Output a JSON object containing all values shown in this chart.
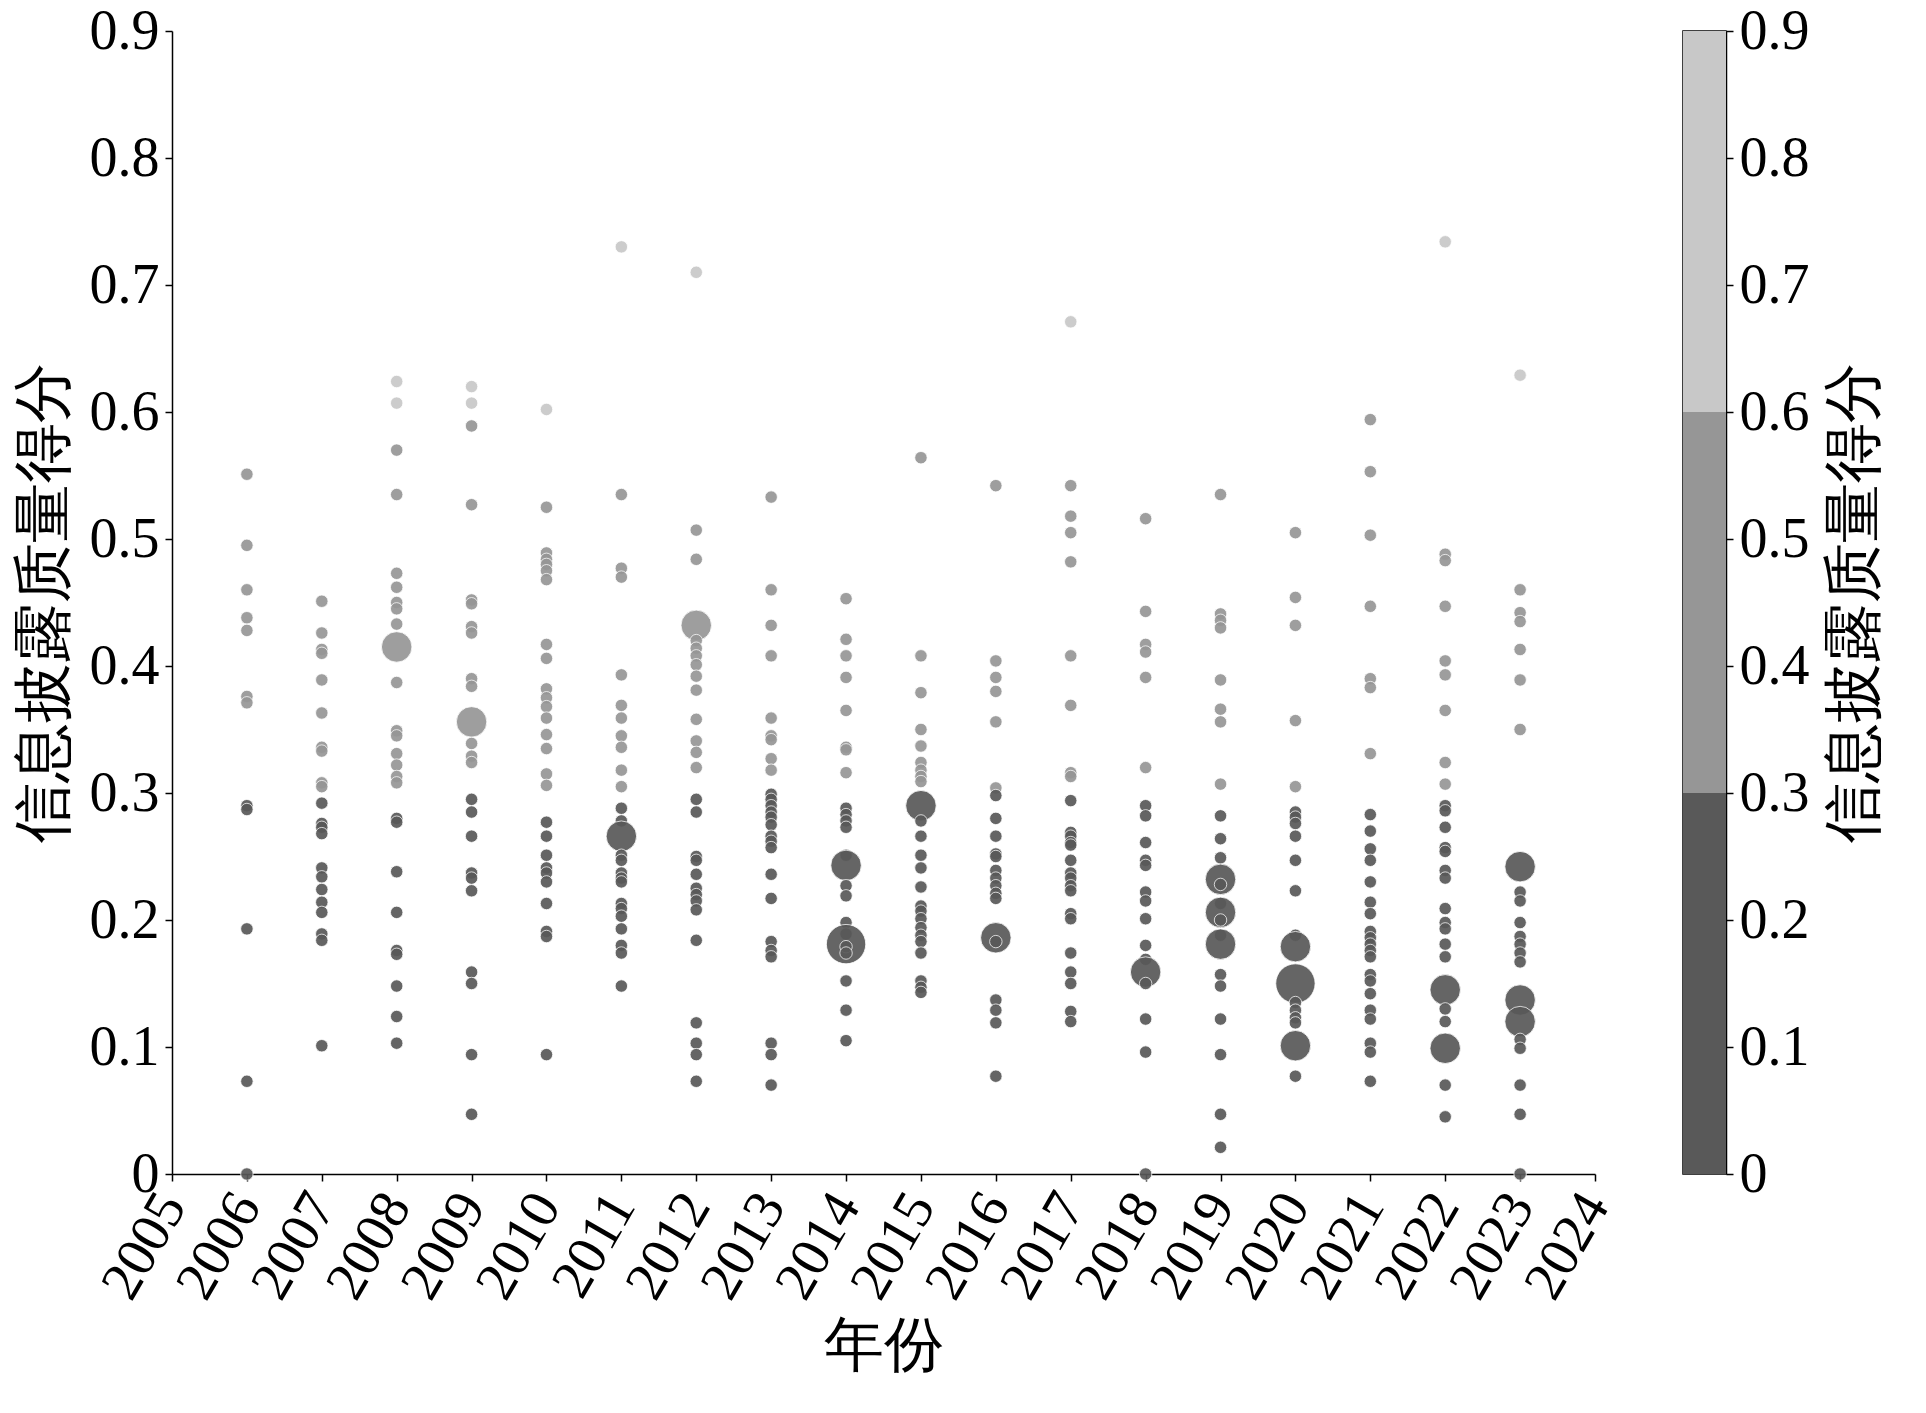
{
  "chart_data": {
    "type": "bubble",
    "xlabel": "年份",
    "ylabel": "信息披露质量得分",
    "clabel": "信息披露质量得分",
    "marker": "circle",
    "xlim": [
      2005,
      2024
    ],
    "xticks": [
      2005,
      2006,
      2007,
      2008,
      2009,
      2010,
      2011,
      2012,
      2013,
      2014,
      2015,
      2016,
      2017,
      2018,
      2019,
      2020,
      2021,
      2022,
      2023,
      2024
    ],
    "ylim": [
      0,
      0.9
    ],
    "yticks": [
      0,
      0.1,
      0.2,
      0.3,
      0.4,
      0.5,
      0.6,
      0.7,
      0.8,
      0.9
    ],
    "clim": [
      0,
      0.9
    ],
    "cticks": [
      0,
      0.1,
      0.2,
      0.3,
      0.4,
      0.5,
      0.6,
      0.7,
      0.8,
      0.9
    ],
    "x": [
      2006,
      2006,
      2006,
      2006,
      2006,
      2006,
      2006,
      2006,
      2006,
      2006,
      2006,
      2006,
      2007,
      2007,
      2007,
      2007,
      2007,
      2007,
      2007,
      2007,
      2007,
      2007,
      2007,
      2007,
      2007,
      2007,
      2007,
      2007,
      2007,
      2007,
      2007,
      2007,
      2007,
      2007,
      2008,
      2008,
      2008,
      2008,
      2008,
      2008,
      2008,
      2008,
      2008,
      2008,
      2008,
      2008,
      2008,
      2008,
      2008,
      2008,
      2008,
      2008,
      2008,
      2008,
      2008,
      2008,
      2008,
      2008,
      2008,
      2008,
      2009,
      2009,
      2009,
      2009,
      2009,
      2009,
      2009,
      2009,
      2009,
      2009,
      2009,
      2009,
      2009,
      2009,
      2009,
      2009,
      2009,
      2009,
      2009,
      2009,
      2009,
      2009,
      2009,
      2009,
      2010,
      2010,
      2010,
      2010,
      2010,
      2010,
      2010,
      2010,
      2010,
      2010,
      2010,
      2010,
      2010,
      2010,
      2010,
      2010,
      2010,
      2010,
      2010,
      2010,
      2010,
      2010,
      2010,
      2010,
      2010,
      2010,
      2010,
      2011,
      2011,
      2011,
      2011,
      2011,
      2011,
      2011,
      2011,
      2011,
      2011,
      2011,
      2011,
      2011,
      2011,
      2011,
      2011,
      2011,
      2011,
      2011,
      2011,
      2011,
      2011,
      2011,
      2011,
      2011,
      2011,
      2012,
      2012,
      2012,
      2012,
      2012,
      2012,
      2012,
      2012,
      2012,
      2012,
      2012,
      2012,
      2012,
      2012,
      2012,
      2012,
      2012,
      2012,
      2012,
      2012,
      2012,
      2012,
      2012,
      2012,
      2012,
      2012,
      2012,
      2012,
      2013,
      2013,
      2013,
      2013,
      2013,
      2013,
      2013,
      2013,
      2013,
      2013,
      2013,
      2013,
      2013,
      2013,
      2013,
      2013,
      2013,
      2013,
      2013,
      2013,
      2013,
      2013,
      2013,
      2013,
      2013,
      2013,
      2014,
      2014,
      2014,
      2014,
      2014,
      2014,
      2014,
      2014,
      2014,
      2014,
      2014,
      2014,
      2014,
      2014,
      2014,
      2014,
      2014,
      2014,
      2014,
      2014,
      2014,
      2014,
      2014,
      2014,
      2015,
      2015,
      2015,
      2015,
      2015,
      2015,
      2015,
      2015,
      2015,
      2015,
      2015,
      2015,
      2015,
      2015,
      2015,
      2015,
      2015,
      2015,
      2015,
      2015,
      2015,
      2015,
      2015,
      2015,
      2015,
      2016,
      2016,
      2016,
      2016,
      2016,
      2016,
      2016,
      2016,
      2016,
      2016,
      2016,
      2016,
      2016,
      2016,
      2016,
      2016,
      2016,
      2016,
      2016,
      2016,
      2016,
      2016,
      2017,
      2017,
      2017,
      2017,
      2017,
      2017,
      2017,
      2017,
      2017,
      2017,
      2017,
      2017,
      2017,
      2017,
      2017,
      2017,
      2017,
      2017,
      2017,
      2017,
      2017,
      2017,
      2017,
      2017,
      2017,
      2017,
      2018,
      2018,
      2018,
      2018,
      2018,
      2018,
      2018,
      2018,
      2018,
      2018,
      2018,
      2018,
      2018,
      2018,
      2018,
      2018,
      2018,
      2018,
      2018,
      2018,
      2018,
      2019,
      2019,
      2019,
      2019,
      2019,
      2019,
      2019,
      2019,
      2019,
      2019,
      2019,
      2019,
      2019,
      2019,
      2019,
      2019,
      2019,
      2019,
      2019,
      2019,
      2019,
      2019,
      2019,
      2019,
      2020,
      2020,
      2020,
      2020,
      2020,
      2020,
      2020,
      2020,
      2020,
      2020,
      2020,
      2020,
      2020,
      2020,
      2020,
      2020,
      2020,
      2020,
      2020,
      2020,
      2021,
      2021,
      2021,
      2021,
      2021,
      2021,
      2021,
      2021,
      2021,
      2021,
      2021,
      2021,
      2021,
      2021,
      2021,
      2021,
      2021,
      2021,
      2021,
      2021,
      2021,
      2021,
      2021,
      2021,
      2021,
      2021,
      2021,
      2022,
      2022,
      2022,
      2022,
      2022,
      2022,
      2022,
      2022,
      2022,
      2022,
      2022,
      2022,
      2022,
      2022,
      2022,
      2022,
      2022,
      2022,
      2022,
      2022,
      2022,
      2022,
      2022,
      2022,
      2022,
      2022,
      2022,
      2023,
      2023,
      2023,
      2023,
      2023,
      2023,
      2023,
      2023,
      2023,
      2023,
      2023,
      2023,
      2023,
      2023,
      2023,
      2023,
      2023,
      2023,
      2023,
      2023,
      2023,
      2023
    ],
    "values": [
      0.551,
      0.495,
      0.46,
      0.438,
      0.428,
      0.376,
      0.371,
      0.29,
      0.287,
      0.193,
      0.073,
      0,
      0.451,
      0.426,
      0.413,
      0.41,
      0.389,
      0.363,
      0.336,
      0.333,
      0.308,
      0.305,
      0.292,
      0.276,
      0.273,
      0.268,
      0.241,
      0.234,
      0.224,
      0.214,
      0.206,
      0.189,
      0.184,
      0.101,
      0.624,
      0.607,
      0.57,
      0.535,
      0.473,
      0.462,
      0.45,
      0.445,
      0.433,
      0.415,
      0.387,
      0.349,
      0.345,
      0.331,
      0.322,
      0.313,
      0.308,
      0.28,
      0.277,
      0.238,
      0.206,
      0.176,
      0.173,
      0.148,
      0.124,
      0.103,
      0.62,
      0.607,
      0.589,
      0.527,
      0.452,
      0.449,
      0.431,
      0.426,
      0.39,
      0.384,
      0.356,
      0.339,
      0.329,
      0.324,
      0.295,
      0.285,
      0.266,
      0.237,
      0.233,
      0.223,
      0.159,
      0.15,
      0.094,
      0.047,
      0.602,
      0.525,
      0.489,
      0.484,
      0.48,
      0.475,
      0.468,
      0.417,
      0.406,
      0.382,
      0.375,
      0.368,
      0.359,
      0.346,
      0.335,
      0.315,
      0.306,
      0.277,
      0.266,
      0.251,
      0.241,
      0.237,
      0.23,
      0.213,
      0.191,
      0.187,
      0.094,
      0.73,
      0.535,
      0.477,
      0.47,
      0.393,
      0.369,
      0.359,
      0.345,
      0.336,
      0.318,
      0.305,
      0.288,
      0.278,
      0.266,
      0.251,
      0.247,
      0.237,
      0.233,
      0.23,
      0.213,
      0.209,
      0.203,
      0.193,
      0.18,
      0.174,
      0.148,
      0.71,
      0.507,
      0.484,
      0.432,
      0.42,
      0.414,
      0.408,
      0.401,
      0.392,
      0.381,
      0.358,
      0.341,
      0.332,
      0.32,
      0.295,
      0.285,
      0.25,
      0.247,
      0.236,
      0.225,
      0.22,
      0.215,
      0.208,
      0.184,
      0.119,
      0.103,
      0.094,
      0.073,
      0.533,
      0.46,
      0.432,
      0.408,
      0.359,
      0.345,
      0.342,
      0.327,
      0.318,
      0.299,
      0.295,
      0.29,
      0.285,
      0.281,
      0.275,
      0.266,
      0.262,
      0.257,
      0.236,
      0.217,
      0.183,
      0.176,
      0.171,
      0.103,
      0.094,
      0.07,
      0.453,
      0.421,
      0.408,
      0.391,
      0.365,
      0.336,
      0.334,
      0.316,
      0.288,
      0.283,
      0.278,
      0.273,
      0.251,
      0.243,
      0.227,
      0.219,
      0.198,
      0.189,
      0.181,
      0.179,
      0.174,
      0.152,
      0.129,
      0.105,
      0.564,
      0.408,
      0.379,
      0.35,
      0.337,
      0.324,
      0.318,
      0.313,
      0.309,
      0.29,
      0.278,
      0.266,
      0.251,
      0.241,
      0.226,
      0.211,
      0.207,
      0.201,
      0.194,
      0.188,
      0.183,
      0.174,
      0.152,
      0.147,
      0.143,
      0.542,
      0.404,
      0.391,
      0.38,
      0.356,
      0.304,
      0.298,
      0.28,
      0.266,
      0.252,
      0.25,
      0.239,
      0.233,
      0.227,
      0.221,
      0.217,
      0.186,
      0.183,
      0.137,
      0.129,
      0.119,
      0.077,
      0.671,
      0.542,
      0.518,
      0.505,
      0.482,
      0.408,
      0.369,
      0.316,
      0.313,
      0.294,
      0.269,
      0.266,
      0.261,
      0.259,
      0.247,
      0.237,
      0.233,
      0.227,
      0.223,
      0.205,
      0.201,
      0.174,
      0.159,
      0.15,
      0.128,
      0.12,
      0.516,
      0.443,
      0.417,
      0.411,
      0.391,
      0.32,
      0.29,
      0.282,
      0.261,
      0.247,
      0.243,
      0.222,
      0.215,
      0.201,
      0.18,
      0.169,
      0.159,
      0.15,
      0.122,
      0.096,
      0,
      0.535,
      0.441,
      0.436,
      0.43,
      0.389,
      0.366,
      0.356,
      0.307,
      0.282,
      0.264,
      0.249,
      0.232,
      0.228,
      0.213,
      0.206,
      0.2,
      0.188,
      0.181,
      0.157,
      0.148,
      0.122,
      0.094,
      0.047,
      0.021,
      0.505,
      0.454,
      0.432,
      0.357,
      0.305,
      0.285,
      0.281,
      0.276,
      0.266,
      0.247,
      0.223,
      0.188,
      0.179,
      0.15,
      0.135,
      0.129,
      0.123,
      0.119,
      0.101,
      0.077,
      0.594,
      0.553,
      0.503,
      0.447,
      0.39,
      0.383,
      0.331,
      0.283,
      0.27,
      0.256,
      0.247,
      0.23,
      0.214,
      0.205,
      0.191,
      0.186,
      0.181,
      0.176,
      0.171,
      0.157,
      0.152,
      0.142,
      0.129,
      0.122,
      0.103,
      0.096,
      0.073,
      0.734,
      0.488,
      0.483,
      0.447,
      0.404,
      0.393,
      0.365,
      0.324,
      0.307,
      0.29,
      0.286,
      0.273,
      0.257,
      0.254,
      0.239,
      0.233,
      0.209,
      0.198,
      0.193,
      0.181,
      0.171,
      0.145,
      0.13,
      0.12,
      0.099,
      0.07,
      0.045,
      0.629,
      0.46,
      0.442,
      0.435,
      0.413,
      0.389,
      0.35,
      0.242,
      0.222,
      0.215,
      0.198,
      0.187,
      0.181,
      0.174,
      0.167,
      0.137,
      0.12,
      0.106,
      0.099,
      0.07,
      0.047,
      0
    ],
    "sizes": [
      0.1,
      0.1,
      0.1,
      0.1,
      0.1,
      0.1,
      0.1,
      0.1,
      0.1,
      0.1,
      0.1,
      0.1,
      0.1,
      0.1,
      0.1,
      0.1,
      0.1,
      0.1,
      0.1,
      0.1,
      0.1,
      0.1,
      0.1,
      0.1,
      0.1,
      0.1,
      0.1,
      0.1,
      0.1,
      0.1,
      0.1,
      0.1,
      0.1,
      0.1,
      0.1,
      0.1,
      0.1,
      0.1,
      0.1,
      0.1,
      0.1,
      0.1,
      0.1,
      0.6,
      0.1,
      0.1,
      0.1,
      0.1,
      0.1,
      0.1,
      0.1,
      0.1,
      0.1,
      0.1,
      0.1,
      0.1,
      0.1,
      0.1,
      0.1,
      0.1,
      0.1,
      0.1,
      0.1,
      0.1,
      0.1,
      0.1,
      0.1,
      0.1,
      0.1,
      0.1,
      0.6,
      0.1,
      0.1,
      0.1,
      0.1,
      0.1,
      0.1,
      0.1,
      0.1,
      0.1,
      0.1,
      0.1,
      0.1,
      0.1,
      0.1,
      0.1,
      0.1,
      0.1,
      0.1,
      0.1,
      0.1,
      0.1,
      0.1,
      0.1,
      0.1,
      0.1,
      0.1,
      0.1,
      0.1,
      0.1,
      0.1,
      0.1,
      0.1,
      0.1,
      0.1,
      0.1,
      0.1,
      0.1,
      0.1,
      0.1,
      0.1,
      0.1,
      0.1,
      0.1,
      0.1,
      0.1,
      0.1,
      0.1,
      0.1,
      0.1,
      0.1,
      0.1,
      0.1,
      0.1,
      0.6,
      0.1,
      0.1,
      0.1,
      0.1,
      0.1,
      0.1,
      0.1,
      0.1,
      0.1,
      0.1,
      0.1,
      0.1,
      0.1,
      0.1,
      0.1,
      0.6,
      0.1,
      0.1,
      0.1,
      0.1,
      0.1,
      0.1,
      0.1,
      0.1,
      0.1,
      0.1,
      0.1,
      0.1,
      0.1,
      0.1,
      0.1,
      0.1,
      0.1,
      0.1,
      0.1,
      0.1,
      0.1,
      0.1,
      0.1,
      0.1,
      0.1,
      0.1,
      0.1,
      0.1,
      0.1,
      0.1,
      0.1,
      0.1,
      0.1,
      0.1,
      0.1,
      0.1,
      0.1,
      0.1,
      0.1,
      0.1,
      0.1,
      0.1,
      0.1,
      0.1,
      0.1,
      0.1,
      0.1,
      0.1,
      0.1,
      0.1,
      0.1,
      0.1,
      0.1,
      0.1,
      0.1,
      0.1,
      0.1,
      0.1,
      0.1,
      0.1,
      0.1,
      0.1,
      0.1,
      0.6,
      0.1,
      0.1,
      0.1,
      0.1,
      1,
      0.1,
      0.1,
      0.1,
      0.1,
      0.1,
      0.1,
      0.1,
      0.1,
      0.1,
      0.1,
      0.1,
      0.1,
      0.1,
      0.1,
      0.6,
      0.1,
      0.1,
      0.1,
      0.1,
      0.1,
      0.1,
      0.1,
      0.1,
      0.1,
      0.1,
      0.1,
      0.1,
      0.1,
      0.1,
      0.1,
      0.1,
      0.1,
      0.1,
      0.1,
      0.1,
      0.1,
      0.1,
      0.1,
      0.1,
      0.1,
      0.1,
      0.1,
      0.1,
      0.1,
      0.1,
      0.1,
      0.6,
      0.1,
      0.1,
      0.1,
      0.1,
      0.1,
      0.1,
      0.1,
      0.1,
      0.1,
      0.1,
      0.1,
      0.1,
      0.1,
      0.1,
      0.1,
      0.1,
      0.1,
      0.1,
      0.1,
      0.1,
      0.1,
      0.1,
      0.1,
      0.1,
      0.1,
      0.1,
      0.1,
      0.1,
      0.1,
      0.1,
      0.1,
      0.1,
      0.1,
      0.1,
      0.1,
      0.1,
      0.1,
      0.1,
      0.1,
      0.1,
      0.1,
      0.1,
      0.1,
      0.1,
      0.1,
      0.1,
      0.1,
      0.6,
      0.1,
      0.1,
      0.1,
      0.1,
      0.1,
      0.1,
      0.1,
      0.1,
      0.1,
      0.1,
      0.1,
      0.1,
      0.1,
      0.1,
      0.1,
      0.6,
      0.1,
      0.1,
      0.6,
      0.1,
      0.1,
      0.6,
      0.1,
      0.1,
      0.1,
      0.1,
      0.1,
      0.1,
      0.1,
      0.1,
      0.1,
      0.1,
      0.1,
      0.1,
      0.1,
      0.1,
      0.1,
      0.1,
      0.1,
      0.1,
      0.6,
      1,
      0.1,
      0.1,
      0.1,
      0.1,
      0.6,
      0.1,
      0.1,
      0.1,
      0.1,
      0.1,
      0.1,
      0.1,
      0.1,
      0.1,
      0.1,
      0.1,
      0.1,
      0.1,
      0.1,
      0.1,
      0.1,
      0.1,
      0.1,
      0.1,
      0.1,
      0.1,
      0.1,
      0.1,
      0.1,
      0.1,
      0.1,
      0.1,
      0.1,
      0.1,
      0.1,
      0.1,
      0.1,
      0.1,
      0.1,
      0.1,
      0.1,
      0.1,
      0.1,
      0.1,
      0.1,
      0.1,
      0.1,
      0.1,
      0.1,
      0.1,
      0.1,
      0.1,
      0.1,
      0.1,
      0.6,
      0.1,
      0.1,
      0.6,
      0.1,
      0.1,
      0.1,
      0.1,
      0.1,
      0.1,
      0.1,
      0.1,
      0.1,
      0.6,
      0.1,
      0.1,
      0.1,
      0.1,
      0.1,
      0.1,
      0.1,
      0.6,
      0.6,
      0.1,
      0.1,
      0.1,
      0.1,
      0.1
    ]
  }
}
